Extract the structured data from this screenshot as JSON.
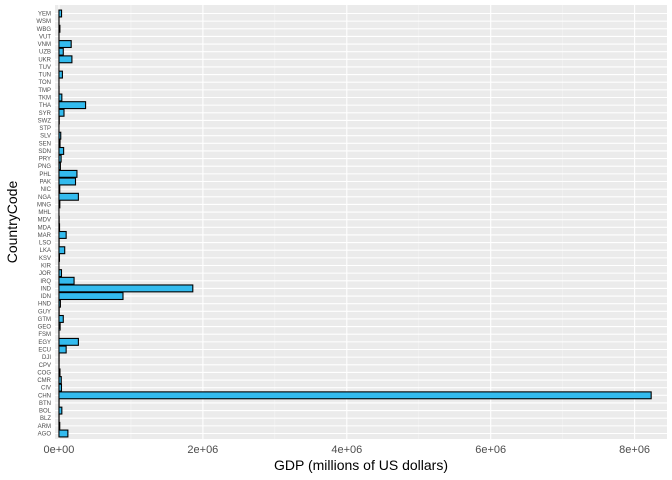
{
  "chart_data": {
    "type": "bar",
    "orientation": "horizontal",
    "title": "",
    "xlabel": "GDP (millions of US dollars)",
    "ylabel": "CountryCode",
    "xlim": [
      -55000,
      8450000
    ],
    "x_ticks": [
      0,
      2000000,
      4000000,
      6000000,
      8000000
    ],
    "x_tick_labels": [
      "0e+00",
      "2e+06",
      "4e+06",
      "6e+06",
      "8e+06"
    ],
    "grid": true,
    "legend": "none",
    "colors": {
      "bar_fill": "#33bbee",
      "bar_stroke": "#000000",
      "panel_bg": "#ebebeb",
      "grid_major": "#ffffff",
      "grid_minor": "#f5f5f5"
    },
    "categories": [
      "AGO",
      "ARM",
      "BLZ",
      "BOL",
      "BTN",
      "CHN",
      "CIV",
      "CMR",
      "COG",
      "CPV",
      "DJI",
      "ECU",
      "EGY",
      "FSM",
      "GEO",
      "GTM",
      "GUY",
      "HND",
      "IDN",
      "IND",
      "IRQ",
      "JOR",
      "KIR",
      "KSV",
      "LKA",
      "LSO",
      "MAR",
      "MDA",
      "MDV",
      "MHL",
      "MNG",
      "NGA",
      "NIC",
      "PAK",
      "PHL",
      "PNG",
      "PRY",
      "SDN",
      "SEN",
      "SLV",
      "STP",
      "SWZ",
      "SYR",
      "THA",
      "TKM",
      "TMP",
      "TON",
      "TUN",
      "TUV",
      "UKR",
      "UZB",
      "VNM",
      "VUT",
      "WBG",
      "WSM",
      "YEM"
    ],
    "values": [
      124000,
      11000,
      2000,
      40000,
      2000,
      8230000,
      35000,
      32000,
      14000,
      2000,
      2000,
      100000,
      270000,
      300,
      16000,
      60000,
      3000,
      20000,
      890000,
      1860000,
      210000,
      35000,
      200,
      7000,
      80000,
      2500,
      100000,
      8000,
      3000,
      200,
      12000,
      270000,
      11000,
      230000,
      250000,
      20000,
      30000,
      65000,
      15000,
      25000,
      300,
      4000,
      70000,
      370000,
      40000,
      1500,
      400,
      48000,
      40,
      180000,
      60000,
      170000,
      800,
      13000,
      800,
      36000
    ]
  }
}
